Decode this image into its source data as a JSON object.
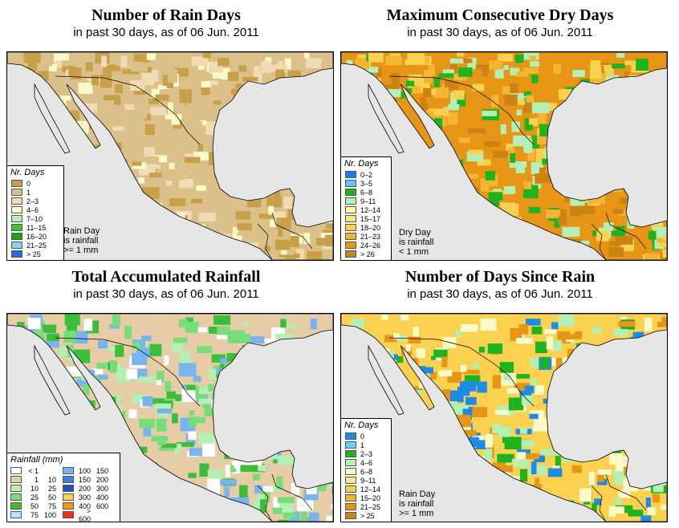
{
  "panels": [
    {
      "title": "Number of Rain Days",
      "subtitle": "in past 30 days, as of  06 Jun. 2011",
      "legend_title": "Nr. Days",
      "legend": [
        {
          "label": "0",
          "color": "#c8a04a"
        },
        {
          "label": "1",
          "color": "#dcc08a"
        },
        {
          "label": "2–3",
          "color": "#f0dcb4"
        },
        {
          "label": "4–6",
          "color": "#fafac8"
        },
        {
          "label": "7–10",
          "color": "#b4f0b4"
        },
        {
          "label": "11–15",
          "color": "#32c832"
        },
        {
          "label": "16–20",
          "color": "#1e9e1e"
        },
        {
          "label": "21–25",
          "color": "#82d2fa"
        },
        {
          "label": "> 25",
          "color": "#1e6ee6"
        }
      ],
      "note": [
        "Rain Day",
        "is rainfall",
        ">= 1 mm"
      ]
    },
    {
      "title": "Maximum Consecutive Dry Days",
      "subtitle": "in past 30 days, as of  06 Jun. 2011",
      "legend_title": "Nr. Days",
      "legend": [
        {
          "label": "0–2",
          "color": "#1e78e6"
        },
        {
          "label": "3–5",
          "color": "#5ac8fa"
        },
        {
          "label": "6–8",
          "color": "#1eb41e"
        },
        {
          "label": "9–11",
          "color": "#b4f0b4"
        },
        {
          "label": "12–14",
          "color": "#fafab4"
        },
        {
          "label": "15–17",
          "color": "#fae678"
        },
        {
          "label": "18–20",
          "color": "#fad250"
        },
        {
          "label": "21–23",
          "color": "#f5b432"
        },
        {
          "label": "24–26",
          "color": "#e69614"
        },
        {
          "label": "> 26",
          "color": "#cd8214"
        }
      ],
      "note": [
        "Dry Day",
        "is rainfall",
        "< 1 mm"
      ]
    },
    {
      "title": "Total Accumulated Rainfall",
      "subtitle": "in past 30 days, as of  06 Jun. 2011",
      "legend_title": "Rainfall (mm)",
      "legend_left": [
        {
          "a": "< 1",
          "b": "",
          "color": "#ffffff"
        },
        {
          "a": "1",
          "b": "10",
          "color": "#e6cda5"
        },
        {
          "a": "10",
          "b": "25",
          "color": "#b4f0b4"
        },
        {
          "a": "25",
          "b": "50",
          "color": "#78dc78"
        },
        {
          "a": "50",
          "b": "75",
          "color": "#3cbe3c"
        },
        {
          "a": "75",
          "b": "100",
          "color": "#b4e6fa"
        }
      ],
      "legend_right": [
        {
          "a": "100",
          "b": "150",
          "color": "#78b4f0"
        },
        {
          "a": "150",
          "b": "200",
          "color": "#3c82e6"
        },
        {
          "a": "200",
          "b": "300",
          "color": "#1e50c8"
        },
        {
          "a": "300",
          "b": "400",
          "color": "#fad250"
        },
        {
          "a": "400",
          "b": "600",
          "color": "#fa9614"
        },
        {
          "a": "> 600",
          "b": "",
          "color": "#f03214"
        }
      ]
    },
    {
      "title": "Number of Days Since Rain",
      "subtitle": "in past 30 days, as of  06 Jun. 2011",
      "legend_title": "Nr. Days",
      "legend": [
        {
          "label": "0",
          "color": "#1e8ce6"
        },
        {
          "label": "1",
          "color": "#64d2fa"
        },
        {
          "label": "2–3",
          "color": "#1eb41e"
        },
        {
          "label": "4–6",
          "color": "#b4f0b4"
        },
        {
          "label": "6–8",
          "color": "#fafac8"
        },
        {
          "label": "9–11",
          "color": "#fae68c"
        },
        {
          "label": "12–14",
          "color": "#fad250"
        },
        {
          "label": "15–20",
          "color": "#f5b432"
        },
        {
          "label": "21–25",
          "color": "#e69614"
        },
        {
          "label": "> 25",
          "color": "#cd8214"
        }
      ],
      "note": [
        "Rain Day",
        "is rainfall",
        ">= 1 mm"
      ]
    }
  ]
}
